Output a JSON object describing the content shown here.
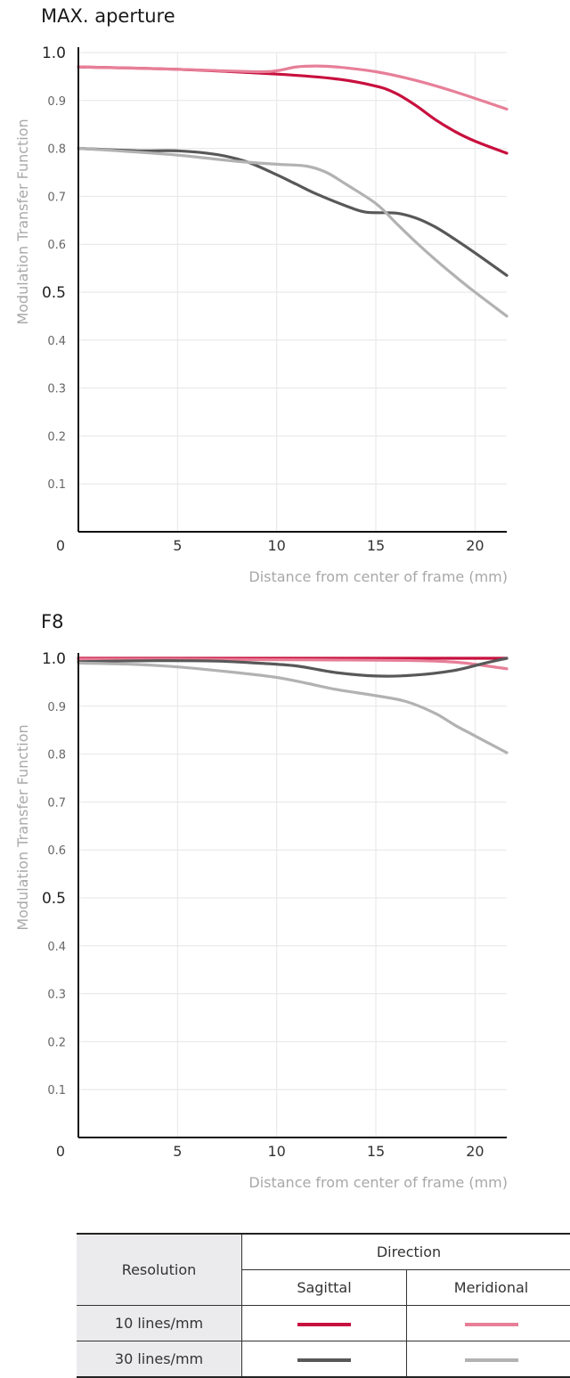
{
  "chart_data": [
    {
      "type": "line",
      "title": "MAX. aperture",
      "xlabel": "Distance from center of frame (mm)",
      "ylabel": "Modulation Transfer Function",
      "xlim": [
        0,
        21.6
      ],
      "ylim": [
        0,
        1.0
      ],
      "x_ticks": [
        "0",
        "5",
        "10",
        "15",
        "20"
      ],
      "y_ticks": [
        "0.1",
        "0.2",
        "0.3",
        "0.4",
        "0.5",
        "0.6",
        "0.7",
        "0.8",
        "0.9",
        "1.0"
      ],
      "grid": true,
      "series": [
        {
          "name": "10 lines/mm Sagittal",
          "color": "#c8103e",
          "points": [
            [
              0,
              0.97
            ],
            [
              5,
              0.965
            ],
            [
              10,
              0.955
            ],
            [
              13,
              0.945
            ],
            [
              15,
              0.93
            ],
            [
              16,
              0.915
            ],
            [
              17,
              0.89
            ],
            [
              18,
              0.86
            ],
            [
              19,
              0.835
            ],
            [
              20,
              0.815
            ],
            [
              21.6,
              0.79
            ]
          ]
        },
        {
          "name": "10 lines/mm Meridional",
          "color": "#e77f98",
          "points": [
            [
              0,
              0.97
            ],
            [
              5,
              0.965
            ],
            [
              9,
              0.96
            ],
            [
              10,
              0.962
            ],
            [
              11,
              0.97
            ],
            [
              12,
              0.972
            ],
            [
              13,
              0.97
            ],
            [
              15,
              0.96
            ],
            [
              17,
              0.942
            ],
            [
              19,
              0.918
            ],
            [
              21.6,
              0.882
            ]
          ]
        },
        {
          "name": "30 lines/mm Sagittal",
          "color": "#585858",
          "points": [
            [
              0,
              0.8
            ],
            [
              3,
              0.795
            ],
            [
              5,
              0.795
            ],
            [
              7,
              0.787
            ],
            [
              8.5,
              0.772
            ],
            [
              10,
              0.745
            ],
            [
              11,
              0.725
            ],
            [
              12,
              0.705
            ],
            [
              13.5,
              0.68
            ],
            [
              14.5,
              0.667
            ],
            [
              16,
              0.665
            ],
            [
              17,
              0.655
            ],
            [
              18,
              0.636
            ],
            [
              19,
              0.61
            ],
            [
              20,
              0.582
            ],
            [
              21.6,
              0.535
            ]
          ]
        },
        {
          "name": "30 lines/mm Meridional",
          "color": "#b2b2b2",
          "points": [
            [
              0,
              0.8
            ],
            [
              2,
              0.795
            ],
            [
              5,
              0.786
            ],
            [
              8,
              0.773
            ],
            [
              10,
              0.767
            ],
            [
              11.5,
              0.763
            ],
            [
              12.5,
              0.75
            ],
            [
              13.5,
              0.725
            ],
            [
              15,
              0.685
            ],
            [
              16,
              0.645
            ],
            [
              17,
              0.605
            ],
            [
              18,
              0.568
            ],
            [
              19,
              0.533
            ],
            [
              20,
              0.5
            ],
            [
              21.6,
              0.45
            ]
          ]
        }
      ]
    },
    {
      "type": "line",
      "title": "F8",
      "xlabel": "Distance from center of frame (mm)",
      "ylabel": "Modulation Transfer Function",
      "xlim": [
        0,
        21.6
      ],
      "ylim": [
        0,
        1.0
      ],
      "x_ticks": [
        "0",
        "5",
        "10",
        "15",
        "20"
      ],
      "y_ticks": [
        "0.1",
        "0.2",
        "0.3",
        "0.4",
        "0.5",
        "0.6",
        "0.7",
        "0.8",
        "0.9",
        "1.0"
      ],
      "grid": true,
      "series": [
        {
          "name": "10 lines/mm Sagittal",
          "color": "#c8103e",
          "points": [
            [
              0,
              1.0
            ],
            [
              5,
              1.0
            ],
            [
              10,
              1.0
            ],
            [
              15,
              1.0
            ],
            [
              21.6,
              1.0
            ]
          ]
        },
        {
          "name": "10 lines/mm Meridional",
          "color": "#e77f98",
          "points": [
            [
              0,
              0.998
            ],
            [
              5,
              0.998
            ],
            [
              10,
              0.997
            ],
            [
              15,
              0.996
            ],
            [
              18,
              0.994
            ],
            [
              19.5,
              0.99
            ],
            [
              21.6,
              0.978
            ]
          ]
        },
        {
          "name": "30 lines/mm Sagittal",
          "color": "#585858",
          "points": [
            [
              0,
              0.993
            ],
            [
              4,
              0.995
            ],
            [
              7,
              0.994
            ],
            [
              9,
              0.99
            ],
            [
              11,
              0.984
            ],
            [
              13,
              0.97
            ],
            [
              15,
              0.963
            ],
            [
              17,
              0.965
            ],
            [
              19,
              0.975
            ],
            [
              20.5,
              0.99
            ],
            [
              21.6,
              1.0
            ]
          ]
        },
        {
          "name": "30 lines/mm Meridional",
          "color": "#b2b2b2",
          "points": [
            [
              0,
              0.99
            ],
            [
              3,
              0.987
            ],
            [
              5,
              0.982
            ],
            [
              8,
              0.97
            ],
            [
              10,
              0.96
            ],
            [
              11.5,
              0.948
            ],
            [
              13,
              0.935
            ],
            [
              15,
              0.922
            ],
            [
              16.5,
              0.91
            ],
            [
              18,
              0.885
            ],
            [
              19,
              0.86
            ],
            [
              20,
              0.838
            ],
            [
              21.6,
              0.803
            ]
          ]
        }
      ]
    }
  ],
  "legend_table": {
    "resolution_header": "Resolution",
    "direction_header": "Direction",
    "sagittal_label": "Sagittal",
    "meridional_label": "Meridional",
    "rows": [
      {
        "label": "10 lines/mm",
        "sagittal_color": "#c8103e",
        "meridional_color": "#e77f98"
      },
      {
        "label": "30 lines/mm",
        "sagittal_color": "#585858",
        "meridional_color": "#b2b2b2"
      }
    ]
  }
}
